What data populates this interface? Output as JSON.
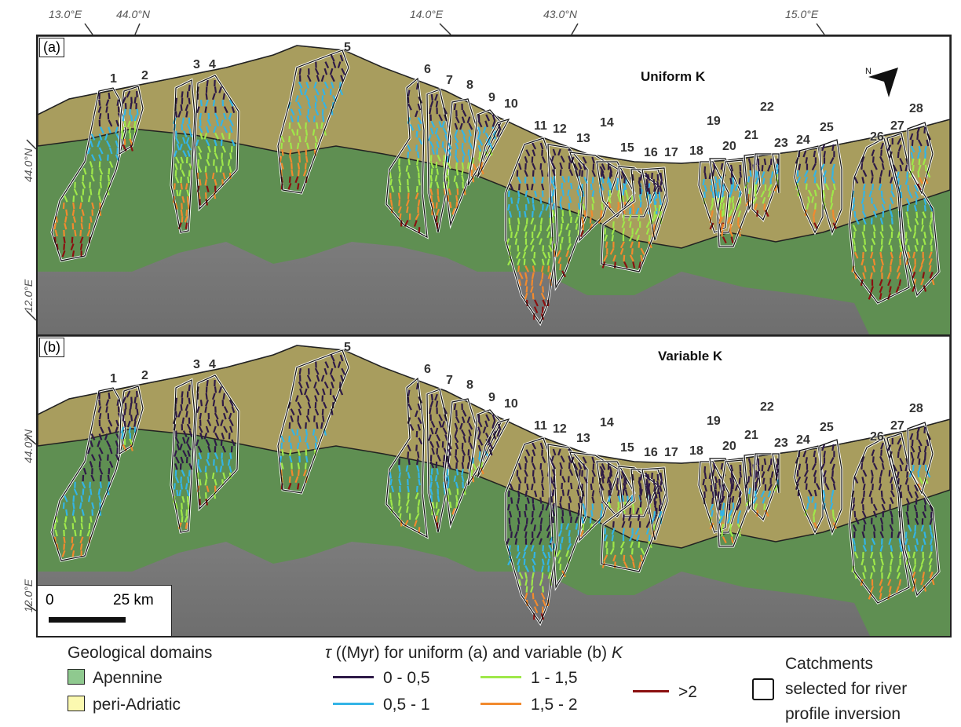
{
  "coords": {
    "top": [
      "13.0°E",
      "44.0°N",
      "14.0°E",
      "43.0°N",
      "15.0°E"
    ],
    "left": [
      "44.0°N",
      "12.0°E",
      "44.0°N",
      "12.0°E"
    ]
  },
  "panel_a": {
    "letter": "(a)",
    "title": "Uniform K"
  },
  "panel_b": {
    "letter": "(b)",
    "title": "Variable K"
  },
  "catchment_numbers": [
    "1",
    "2",
    "3",
    "4",
    "5",
    "6",
    "7",
    "8",
    "9",
    "10",
    "11",
    "12",
    "13",
    "14",
    "15",
    "16",
    "17",
    "18",
    "19",
    "20",
    "21",
    "22",
    "23",
    "24",
    "25",
    "26",
    "27",
    "28"
  ],
  "scale": {
    "zero": "0",
    "end": "25 km"
  },
  "legend": {
    "domains_title": "Geological domains",
    "domains": [
      {
        "label": "Apennine",
        "color": "#8fc98f"
      },
      {
        "label": "peri-Adriatic",
        "color": "#fbf9b0"
      }
    ],
    "tau_title_symbol": "τ",
    "tau_title_text": " ((Myr) for uniform (a) and variable (b) ",
    "tau_title_k": "K",
    "tau_classes": [
      {
        "label": "0 - 0,5",
        "color": "#2e1a47"
      },
      {
        "label": "0,5 - 1",
        "color": "#33b4e6"
      },
      {
        "label": "1 - 1,5",
        "color": "#9fe84a"
      },
      {
        "label": "1,5 - 2",
        "color": "#f28a2e"
      },
      {
        "label": ">2",
        "color": "#8b1010"
      }
    ],
    "catchments_label_1": "Catchments",
    "catchments_label_2": "selected for river",
    "catchments_label_3": "profile inversion"
  },
  "colors": {
    "apennine": "#5f8f52",
    "periadriatic": "#a89d5e",
    "relief": "#8a8a8a"
  }
}
